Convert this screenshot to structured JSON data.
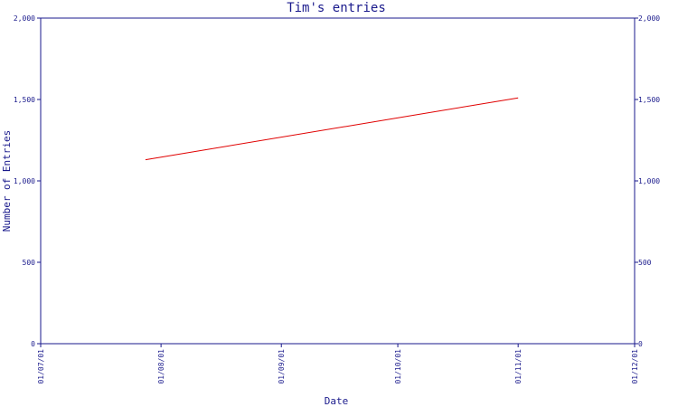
{
  "chart_data": {
    "type": "line",
    "title": "Tim's entries",
    "xlabel": "Date",
    "ylabel": "Number of Entries",
    "x_ticks": [
      "01/07/01",
      "01/08/01",
      "01/09/01",
      "01/10/01",
      "01/11/01",
      "01/12/01"
    ],
    "y_ticks": [
      "0",
      "500",
      "1,000",
      "1,500",
      "2,000"
    ],
    "xlim": [
      "2001-07-01",
      "2001-12-01"
    ],
    "ylim": [
      0,
      2000
    ],
    "series": [
      {
        "x": [
          "2001-07-28",
          "2001-11-01"
        ],
        "values": [
          1130,
          1510
        ],
        "color": "#e00000"
      }
    ],
    "grid": false,
    "right_axis_mirrors_left": true,
    "axis_color": "#1a1a8c"
  }
}
